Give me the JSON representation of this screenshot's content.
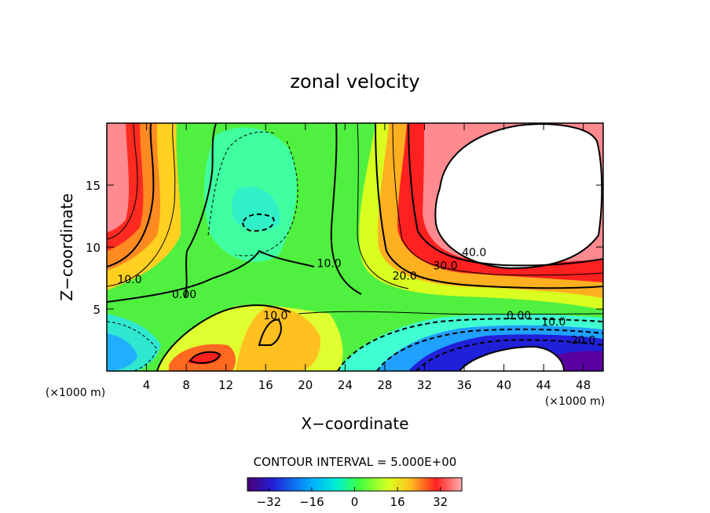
{
  "chart_data": {
    "type": "heatmap",
    "title": "zonal velocity",
    "xlabel": "X−coordinate",
    "ylabel": "Z−coordinate",
    "x_unit_label": "(×1000 m)",
    "z_unit_label": "(×1000 m)",
    "xlim": [
      0,
      50
    ],
    "ylim": [
      0,
      20
    ],
    "x_ticks": [
      4,
      8,
      12,
      16,
      20,
      24,
      28,
      32,
      36,
      40,
      44,
      48
    ],
    "y_ticks": [
      5,
      10,
      15
    ],
    "contour_interval_text": "CONTOUR INTERVAL = 5.000E+00",
    "colorbar": {
      "min": -40,
      "max": 40,
      "tick_values": [
        -32,
        -16,
        0,
        16,
        32
      ],
      "tick_labels": [
        "−32",
        "−16",
        "0",
        "16",
        "32"
      ]
    },
    "contour_labels": [
      {
        "text": "10.0",
        "x": 2.3,
        "z": 7.4
      },
      {
        "text": "0.00",
        "x": 7.8,
        "z": 6.2
      },
      {
        "text": "10.0",
        "x": 17.0,
        "z": 4.5
      },
      {
        "text": "10.0",
        "x": 22.4,
        "z": 8.7
      },
      {
        "text": "20.0",
        "x": 30.0,
        "z": 7.7
      },
      {
        "text": "30.0",
        "x": 34.1,
        "z": 8.5
      },
      {
        "text": "40.0",
        "x": 37.0,
        "z": 9.6
      },
      {
        "text": "0.00",
        "x": 41.5,
        "z": 4.5
      },
      {
        "text": "10.0",
        "x": 45.0,
        "z": 4.0
      },
      {
        "text": "20.0",
        "x": 48.0,
        "z": 2.5
      }
    ]
  }
}
